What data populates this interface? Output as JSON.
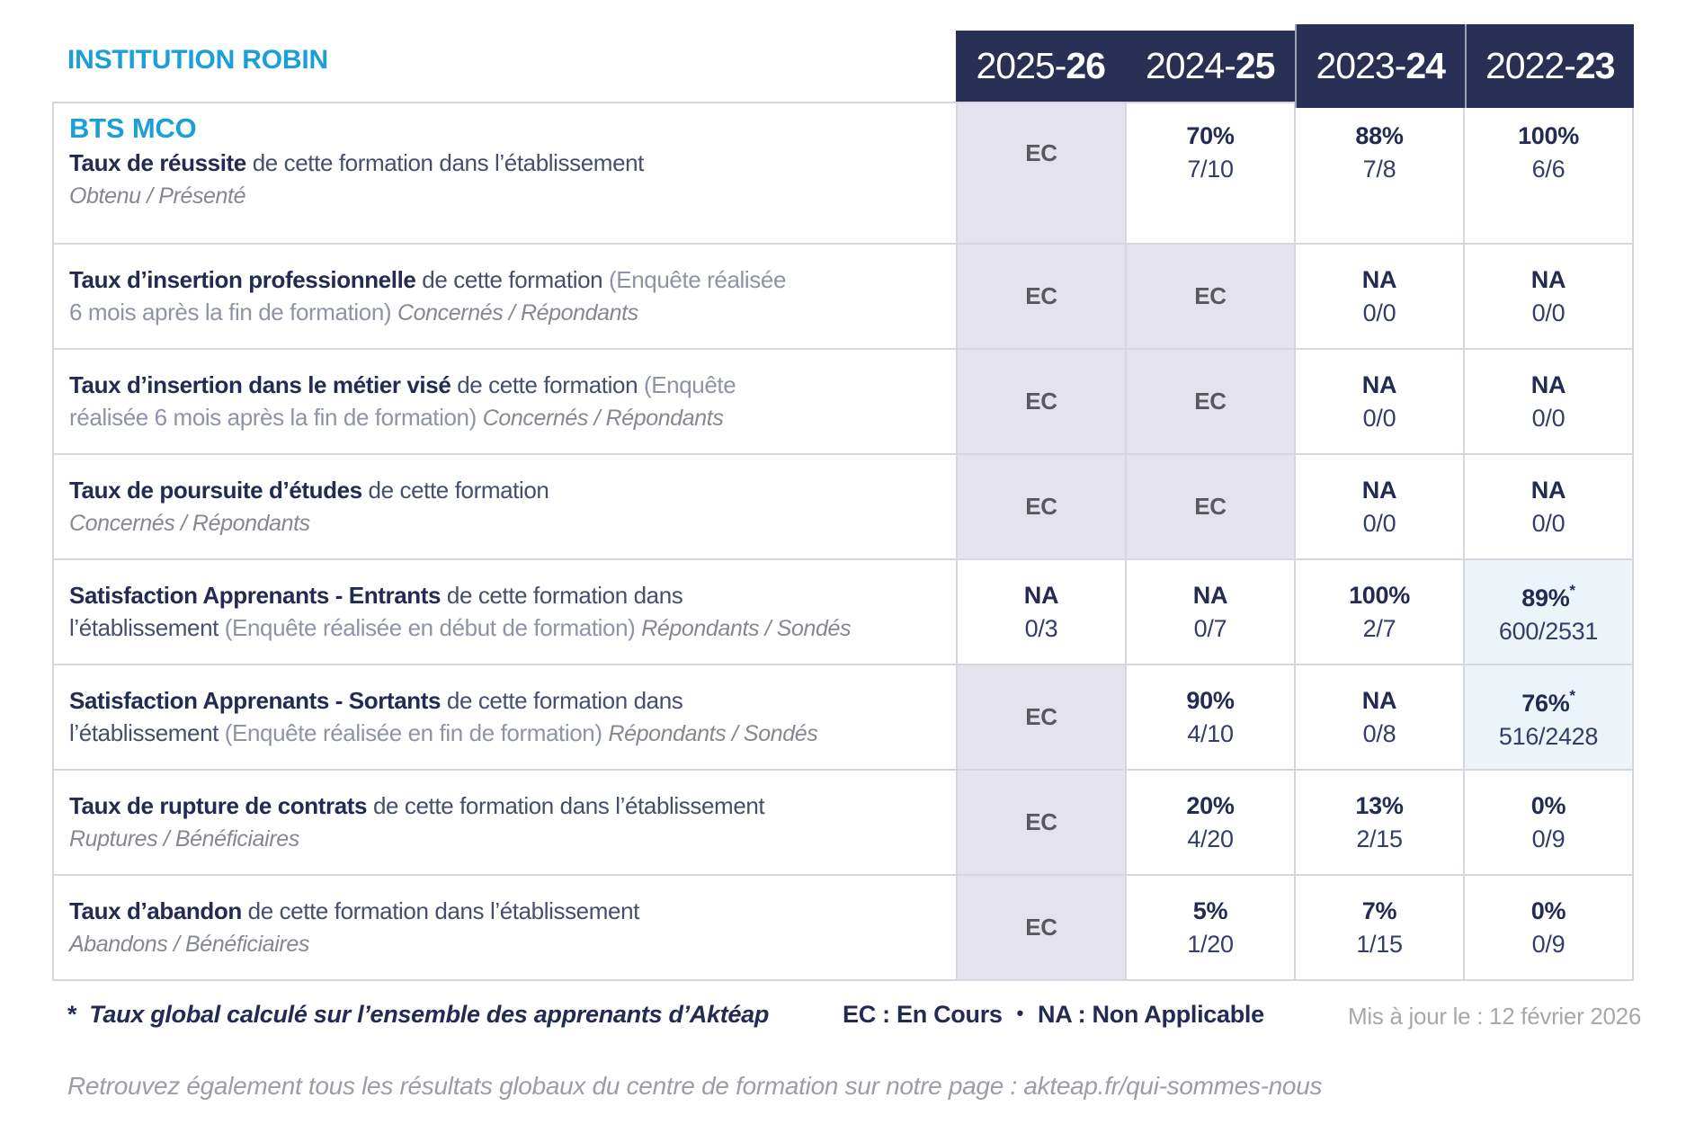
{
  "colors": {
    "accent_blue": "#1b9fd9",
    "header_navy": "#293056",
    "text_navy": "#222b52",
    "ec_gray": "#58595c",
    "cell_lavender": "#e4e3ed",
    "cell_lightblue": "#ecf4fa",
    "border_gray": "#d6d6de"
  },
  "header": {
    "institution": "INSTITUTION ROBIN",
    "years": [
      {
        "pre": "2025-",
        "bold": "26"
      },
      {
        "pre": "2024-",
        "bold": "25"
      },
      {
        "pre": "2023-",
        "bold": "24"
      },
      {
        "pre": "2022-",
        "bold": "23"
      }
    ]
  },
  "course": "BTS MCO",
  "rows": [
    {
      "label": {
        "title": "Taux de réussite",
        "norm": " de cette formation dans l’établissement",
        "sub": "Obtenu / Présenté"
      },
      "cells": [
        {
          "main": "EC",
          "ec": true
        },
        {
          "main": "70%",
          "frac": "7/10"
        },
        {
          "main": "88%",
          "frac": "7/8"
        },
        {
          "main": "100%",
          "frac": "6/6"
        }
      ]
    },
    {
      "label": {
        "title": "Taux d’insertion professionnelle",
        "norm": " de cette formation ",
        "mut": "(Enquête réalisée",
        "mut2": "6 mois après la fin de formation) ",
        "sub": "Concernés / Répondants"
      },
      "cells": [
        {
          "main": "EC",
          "ec": true
        },
        {
          "main": "EC",
          "ec": true
        },
        {
          "main": "NA",
          "frac": "0/0"
        },
        {
          "main": "NA",
          "frac": "0/0"
        }
      ]
    },
    {
      "label": {
        "title": "Taux d’insertion dans le métier visé",
        "norm": " de cette formation ",
        "mut": "(Enquête",
        "mut2": "réalisée 6 mois après la fin de formation) ",
        "sub": "Concernés / Répondants"
      },
      "cells": [
        {
          "main": "EC",
          "ec": true
        },
        {
          "main": "EC",
          "ec": true
        },
        {
          "main": "NA",
          "frac": "0/0"
        },
        {
          "main": "NA",
          "frac": "0/0"
        }
      ]
    },
    {
      "label": {
        "title": "Taux de poursuite d’études",
        "norm": " de cette formation",
        "sub": "Concernés / Répondants"
      },
      "cells": [
        {
          "main": "EC",
          "ec": true
        },
        {
          "main": "EC",
          "ec": true
        },
        {
          "main": "NA",
          "frac": "0/0"
        },
        {
          "main": "NA",
          "frac": "0/0"
        }
      ]
    },
    {
      "label": {
        "title": "Satisfaction Apprenants - Entrants",
        "norm": " de cette formation dans",
        "norm2": "l’établissement ",
        "mut2": "(Enquête réalisée en début de formation) ",
        "sub": "Répondants / Sondés"
      },
      "cells": [
        {
          "main": "NA",
          "frac": "0/3"
        },
        {
          "main": "NA",
          "frac": "0/7"
        },
        {
          "main": "100%",
          "frac": "2/7"
        },
        {
          "main": "89%",
          "star": "*",
          "frac": "600/2531",
          "highlight": true
        }
      ]
    },
    {
      "label": {
        "title": "Satisfaction Apprenants - Sortants",
        "norm": " de cette formation dans",
        "norm2": "l’établissement ",
        "mut2": "(Enquête réalisée en fin de formation) ",
        "sub": "Répondants / Sondés"
      },
      "cells": [
        {
          "main": "EC",
          "ec": true
        },
        {
          "main": "90%",
          "frac": "4/10"
        },
        {
          "main": "NA",
          "frac": "0/8"
        },
        {
          "main": "76%",
          "star": "*",
          "frac": "516/2428",
          "highlight": true
        }
      ]
    },
    {
      "label": {
        "title": "Taux de rupture de contrats",
        "norm": " de cette formation dans l’établissement",
        "sub": "Ruptures / Bénéficiaires"
      },
      "cells": [
        {
          "main": "EC",
          "ec": true
        },
        {
          "main": "20%",
          "frac": "4/20"
        },
        {
          "main": "13%",
          "frac": "2/15"
        },
        {
          "main": "0%",
          "frac": "0/9"
        }
      ]
    },
    {
      "label": {
        "title": "Taux d’abandon",
        "norm": " de cette formation dans l’établissement",
        "sub": "Abandons / Bénéficiaires"
      },
      "cells": [
        {
          "main": "EC",
          "ec": true
        },
        {
          "main": "5%",
          "frac": "1/20"
        },
        {
          "main": "7%",
          "frac": "1/15"
        },
        {
          "main": "0%",
          "frac": "0/9"
        }
      ]
    }
  ],
  "footer": {
    "footnote_star": "*",
    "footnote_text": "Taux global calculé sur l’ensemble des apprenants d’Aktéap",
    "legend_ec": "EC : En Cours",
    "legend_sep": "•",
    "legend_na": "NA : Non Applicable",
    "updated": "Mis à jour le : 12 février 2026",
    "bottom_note": "Retrouvez également tous les résultats globaux du centre de formation sur notre page : akteap.fr/qui-sommes-nous"
  }
}
